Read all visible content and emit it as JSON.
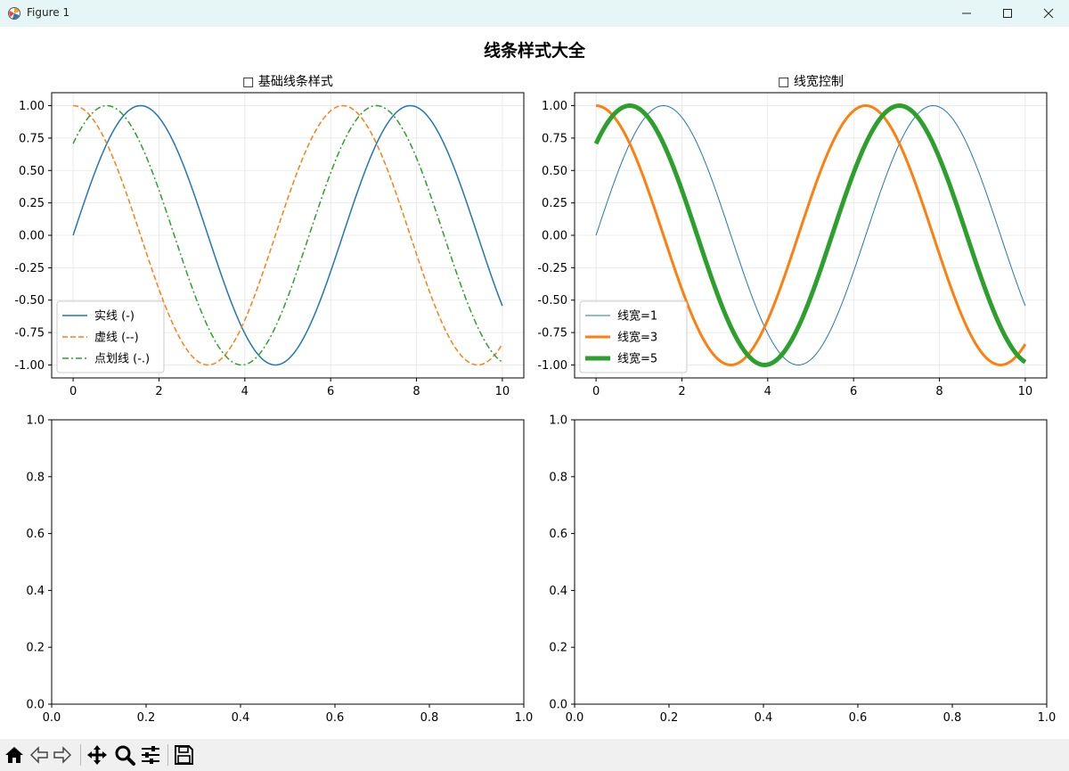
{
  "window": {
    "title": "Figure 1",
    "minimize_label": "—",
    "maximize_label": "☐",
    "close_label": "✕"
  },
  "figure": {
    "suptitle": "线条样式大全"
  },
  "toolbar": {
    "items": [
      "home-icon",
      "back-icon",
      "forward-icon",
      "pan-icon",
      "zoom-icon",
      "configure-icon",
      "save-icon"
    ]
  },
  "colors": {
    "c0": "#1f77b4",
    "c1": "#ff7f0e",
    "c2": "#2ca02c",
    "grid": "#e6e6e6",
    "titlebar": "#e6f6f6",
    "toolbar": "#f0f0f0"
  },
  "chart_data": [
    {
      "type": "line",
      "title": "□ 基础线条样式",
      "xlim": [
        -0.5,
        10.5
      ],
      "ylim": [
        -1.1,
        1.1
      ],
      "xticks": [
        0,
        2,
        4,
        6,
        8,
        10
      ],
      "xtick_labels": [
        "0",
        "2",
        "4",
        "6",
        "8",
        "10"
      ],
      "yticks": [
        1.0,
        0.75,
        0.5,
        0.25,
        0.0,
        -0.25,
        -0.5,
        -0.75,
        -1.0
      ],
      "ytick_labels": [
        "1.00",
        "0.75",
        "0.50",
        "0.25",
        "0.00",
        "-0.25",
        "-0.50",
        "-0.75",
        "-1.00"
      ],
      "grid": true,
      "legend_loc": "lower-left",
      "x_range": [
        0,
        10
      ],
      "series": [
        {
          "name": "实线 (-)",
          "func": "sin(x)",
          "color": "#1f77b4",
          "linestyle": "solid",
          "linewidth": 1.5
        },
        {
          "name": "虚线 (--)",
          "func": "cos(x)",
          "color": "#ff7f0e",
          "linestyle": "dashed",
          "linewidth": 1.5
        },
        {
          "name": "点划线 (-.)",
          "func": "sin(x + π/4)",
          "color": "#2ca02c",
          "linestyle": "dashdot",
          "linewidth": 1.5
        }
      ]
    },
    {
      "type": "line",
      "title": "□ 线宽控制",
      "xlim": [
        -0.5,
        10.5
      ],
      "ylim": [
        -1.1,
        1.1
      ],
      "xticks": [
        0,
        2,
        4,
        6,
        8,
        10
      ],
      "xtick_labels": [
        "0",
        "2",
        "4",
        "6",
        "8",
        "10"
      ],
      "yticks": [
        1.0,
        0.75,
        0.5,
        0.25,
        0.0,
        -0.25,
        -0.5,
        -0.75,
        -1.0
      ],
      "ytick_labels": [
        "1.00",
        "0.75",
        "0.50",
        "0.25",
        "0.00",
        "-0.25",
        "-0.50",
        "-0.75",
        "-1.00"
      ],
      "grid": true,
      "legend_loc": "lower-left",
      "x_range": [
        0,
        10
      ],
      "series": [
        {
          "name": "线宽=1",
          "func": "sin(x)",
          "color": "#1f77b4",
          "linestyle": "solid",
          "linewidth": 1
        },
        {
          "name": "线宽=3",
          "func": "cos(x)",
          "color": "#ff7f0e",
          "linestyle": "solid",
          "linewidth": 3
        },
        {
          "name": "线宽=5",
          "func": "sin(x + π/4)",
          "color": "#2ca02c",
          "linestyle": "solid",
          "linewidth": 5
        }
      ]
    },
    {
      "type": "line",
      "title": "",
      "xlim": [
        0,
        1
      ],
      "ylim": [
        0,
        1
      ],
      "xticks": [
        0,
        0.2,
        0.4,
        0.6,
        0.8,
        1.0
      ],
      "xtick_labels": [
        "0.0",
        "0.2",
        "0.4",
        "0.6",
        "0.8",
        "1.0"
      ],
      "yticks": [
        0,
        0.2,
        0.4,
        0.6,
        0.8,
        1.0
      ],
      "ytick_labels": [
        "0.0",
        "0.2",
        "0.4",
        "0.6",
        "0.8",
        "1.0"
      ],
      "grid": false,
      "series": []
    },
    {
      "type": "line",
      "title": "",
      "xlim": [
        0,
        1
      ],
      "ylim": [
        0,
        1
      ],
      "xticks": [
        0,
        0.2,
        0.4,
        0.6,
        0.8,
        1.0
      ],
      "xtick_labels": [
        "0.0",
        "0.2",
        "0.4",
        "0.6",
        "0.8",
        "1.0"
      ],
      "yticks": [
        0,
        0.2,
        0.4,
        0.6,
        0.8,
        1.0
      ],
      "ytick_labels": [
        "0.0",
        "0.2",
        "0.4",
        "0.6",
        "0.8",
        "1.0"
      ],
      "grid": false,
      "series": []
    }
  ]
}
